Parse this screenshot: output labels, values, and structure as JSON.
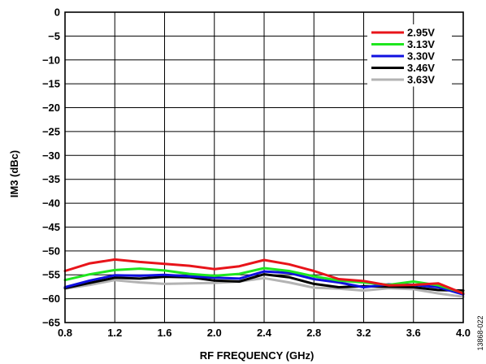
{
  "figure_id": "13868-022",
  "chart_data": {
    "type": "line",
    "xlabel": "RF FREQUENCY (GHz)",
    "ylabel": "IM3 (dBc)",
    "xlim": [
      0.8,
      4.0
    ],
    "ylim": [
      -65,
      0
    ],
    "xticks": [
      0.8,
      1.2,
      1.6,
      2.0,
      2.4,
      2.8,
      3.2,
      3.6,
      4.0
    ],
    "xtick_labels": [
      "0.8",
      "1.2",
      "1.6",
      "2.0",
      "2.4",
      "2.8",
      "3.2",
      "3.6",
      "4.0"
    ],
    "yticks": [
      0,
      -5,
      -10,
      -15,
      -20,
      -25,
      -30,
      -35,
      -40,
      -45,
      -50,
      -55,
      -60,
      -65
    ],
    "ytick_labels": [
      "0",
      "−5",
      "−10",
      "−15",
      "−20",
      "−25",
      "−30",
      "−35",
      "−40",
      "−45",
      "−50",
      "−55",
      "−60",
      "−65"
    ],
    "grid": true,
    "legend_position": "top-right",
    "x": [
      0.8,
      1.0,
      1.2,
      1.4,
      1.6,
      1.8,
      2.0,
      2.2,
      2.4,
      2.6,
      2.8,
      3.0,
      3.2,
      3.4,
      3.6,
      3.8,
      4.0
    ],
    "series": [
      {
        "name": "2.95V",
        "color": "#e8141a",
        "values": [
          -54.2,
          -52.6,
          -51.8,
          -52.3,
          -52.7,
          -53.1,
          -53.8,
          -53.2,
          -51.9,
          -52.8,
          -54.2,
          -55.9,
          -56.3,
          -57.2,
          -57.1,
          -56.8,
          -58.9
        ]
      },
      {
        "name": "3.13V",
        "color": "#1fe61f",
        "values": [
          -56.1,
          -54.9,
          -54.0,
          -53.7,
          -54.1,
          -54.8,
          -55.2,
          -54.8,
          -53.6,
          -54.2,
          -55.3,
          -56.2,
          -56.6,
          -57.1,
          -56.4,
          -57.2,
          -58.8
        ]
      },
      {
        "name": "3.30V",
        "color": "#1010e0",
        "values": [
          -57.6,
          -56.2,
          -55.1,
          -55.2,
          -55.0,
          -55.3,
          -55.6,
          -55.8,
          -54.3,
          -54.6,
          -55.9,
          -56.6,
          -57.6,
          -57.0,
          -57.1,
          -57.6,
          -59.1
        ]
      },
      {
        "name": "3.46V",
        "color": "#000000",
        "values": [
          -57.8,
          -56.7,
          -55.6,
          -55.8,
          -55.4,
          -55.5,
          -56.2,
          -56.4,
          -54.9,
          -55.5,
          -56.9,
          -57.6,
          -57.4,
          -57.5,
          -57.6,
          -58.2,
          -58.3
        ]
      },
      {
        "name": "3.63V",
        "color": "#b3b3b3",
        "values": [
          -57.9,
          -57.1,
          -56.1,
          -56.6,
          -56.9,
          -56.8,
          -56.7,
          -56.4,
          -55.7,
          -56.6,
          -57.7,
          -57.9,
          -58.3,
          -57.8,
          -58.0,
          -58.9,
          -59.6
        ]
      }
    ]
  }
}
